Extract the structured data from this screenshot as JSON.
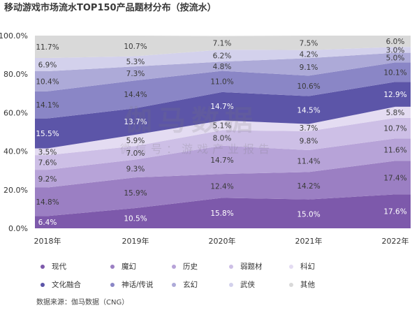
{
  "title": "移动游戏市场流水TOP150产品题材分布（按流水）",
  "source": "数据来源：伽马数据（CNG）",
  "watermark": "伽马数据",
  "watermark_sub": "微信号：游戏产业报告",
  "chart_data": {
    "type": "area",
    "stacked": true,
    "categories": [
      "2018年",
      "2019年",
      "2020年",
      "2021年",
      "2022年"
    ],
    "ylim": [
      0,
      100
    ],
    "yticks": [
      "0.0%",
      "20.0%",
      "40.0%",
      "60.0%",
      "80.0%",
      "100.0%"
    ],
    "series": [
      {
        "name": "现代",
        "color": "#7d59ab",
        "values": [
          6.4,
          10.5,
          15.8,
          15.0,
          17.6
        ],
        "labels": [
          "6.4%",
          "10.5%",
          "15.8%",
          "15.0%",
          "17.6%"
        ]
      },
      {
        "name": "魔幻",
        "color": "#9b7fc3",
        "values": [
          14.8,
          15.9,
          12.4,
          14.2,
          17.4
        ],
        "labels": [
          "14.8%",
          "15.9%",
          "12.4%",
          "14.2%",
          "17.4%"
        ]
      },
      {
        "name": "历史",
        "color": "#b7a3d8",
        "values": [
          9.2,
          9.3,
          14.7,
          11.4,
          11.6
        ],
        "labels": [
          "9.2%",
          "9.3%",
          "14.7%",
          "11.4%",
          "11.6%"
        ]
      },
      {
        "name": "弱题材",
        "color": "#cdbfe6",
        "values": [
          7.6,
          7.0,
          8.0,
          9.8,
          10.7
        ],
        "labels": [
          "7.6%",
          "7.0%",
          "8.0%",
          "9.8%",
          "10.7%"
        ]
      },
      {
        "name": "科幻",
        "color": "#e4dcf2",
        "values": [
          3.5,
          5.9,
          5.1,
          3.7,
          5.8
        ],
        "labels": [
          "3.5%",
          "5.9%",
          "5.1%",
          "3.7%",
          "5.8%"
        ]
      },
      {
        "name": "文化融合",
        "color": "#5c55a8",
        "values": [
          15.5,
          13.7,
          14.7,
          14.5,
          12.9
        ],
        "labels": [
          "15.5%",
          "13.7%",
          "14.7%",
          "14.5%",
          "12.9%"
        ]
      },
      {
        "name": "神话/传说",
        "color": "#8a86c6",
        "values": [
          14.1,
          14.4,
          11.0,
          10.6,
          10.1
        ],
        "labels": [
          "14.1%",
          "14.4%",
          "11.0%",
          "10.6%",
          "10.1%"
        ]
      },
      {
        "name": "玄幻",
        "color": "#adaad8",
        "values": [
          10.4,
          7.3,
          4.8,
          9.1,
          5.0
        ],
        "labels": [
          "10.4%",
          "7.3%",
          "4.8%",
          "9.1%",
          "5.0%"
        ]
      },
      {
        "name": "武侠",
        "color": "#d3d1ec",
        "values": [
          6.9,
          5.3,
          6.2,
          4.2,
          3.0
        ],
        "labels": [
          "6.9%",
          "5.3%",
          "6.2%",
          "4.2%",
          "3.0%"
        ]
      },
      {
        "name": "其他",
        "color": "#d9d9d9",
        "values": [
          11.7,
          10.7,
          7.1,
          7.5,
          6.0
        ],
        "labels": [
          "11.7%",
          "10.7%",
          "7.1%",
          "7.5%",
          "6.0%"
        ]
      }
    ],
    "legend_position": "bottom"
  }
}
